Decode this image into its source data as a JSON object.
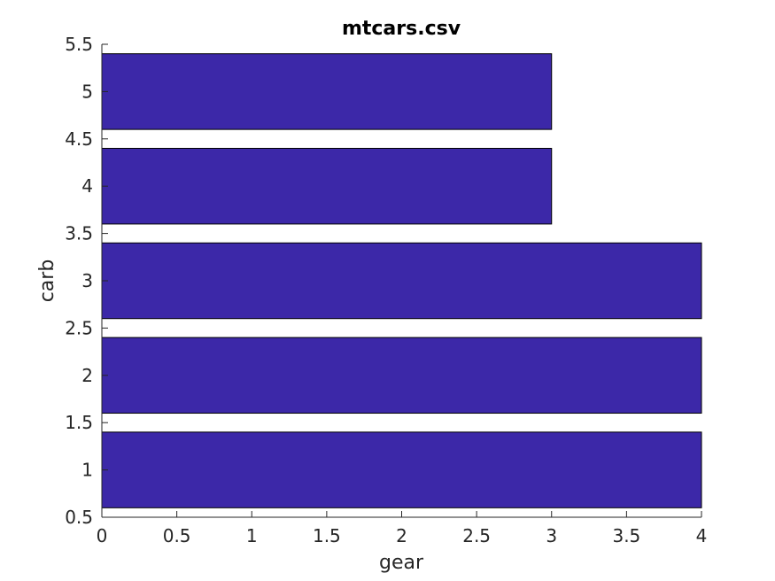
{
  "chart_data": {
    "type": "bar",
    "orientation": "horizontal",
    "title": "mtcars.csv",
    "xlabel": "gear",
    "ylabel": "carb",
    "categories": [
      1,
      2,
      3,
      4,
      5
    ],
    "values": [
      4,
      4,
      4,
      3,
      3
    ],
    "xlim": [
      0,
      4
    ],
    "ylim": [
      0.5,
      5.5
    ],
    "xticks": [
      "0",
      "0.5",
      "1",
      "1.5",
      "2",
      "2.5",
      "3",
      "3.5",
      "4"
    ],
    "yticks": [
      "0.5",
      "1",
      "1.5",
      "2",
      "2.5",
      "3",
      "3.5",
      "4",
      "4.5",
      "5",
      "5.5"
    ],
    "bar_color": "#3c28a8",
    "grid": false
  }
}
